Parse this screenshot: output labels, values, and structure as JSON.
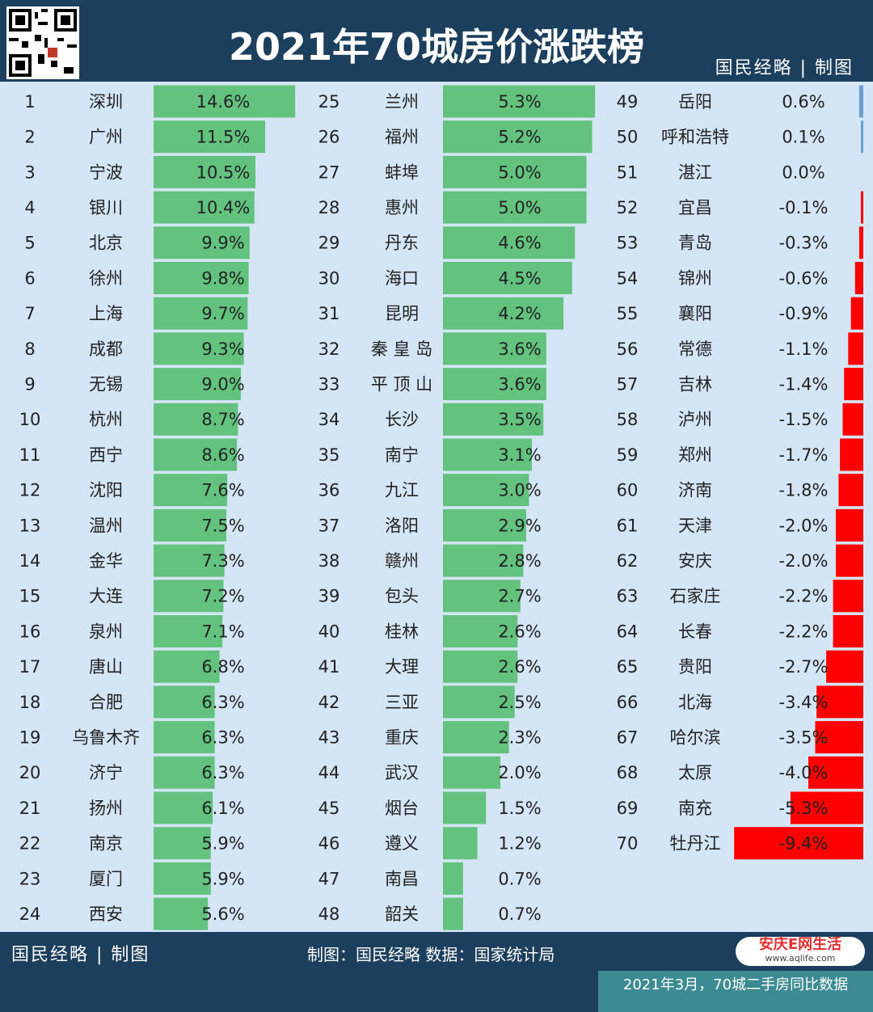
{
  "header": {
    "title": "2021年70城房价涨跌榜",
    "brand": "国民经略 | 制图"
  },
  "note": {
    "line1": "制图：国民经略  数据：国家统计局",
    "line2": "2021年3月，70城二手房同比数据"
  },
  "footer": {
    "brand": "国民经略 | 制图",
    "credit": "制图：国民经略 数据：国家统计局",
    "logo_text": "安庆E网生活",
    "logo_url": "www.aqlife.com"
  },
  "colors": {
    "positive": "#62c27e",
    "negative": "#ff0000",
    "small": "#6a9fd0",
    "panel": "#d4e6f5",
    "header": "#1c3f5d"
  },
  "chart_data": {
    "type": "bar",
    "unit": "%",
    "series": [
      {
        "values": [
          {
            "rank": "1",
            "city": "深圳",
            "value": 14.6
          },
          {
            "rank": "2",
            "city": "广州",
            "value": 11.5
          },
          {
            "rank": "3",
            "city": "宁波",
            "value": 10.5
          },
          {
            "rank": "4",
            "city": "银川",
            "value": 10.4
          },
          {
            "rank": "5",
            "city": "北京",
            "value": 9.9
          },
          {
            "rank": "6",
            "city": "徐州",
            "value": 9.8
          },
          {
            "rank": "7",
            "city": "上海",
            "value": 9.7
          },
          {
            "rank": "8",
            "city": "成都",
            "value": 9.3
          },
          {
            "rank": "9",
            "city": "无锡",
            "value": 9.0
          },
          {
            "rank": "10",
            "city": "杭州",
            "value": 8.7
          },
          {
            "rank": "11",
            "city": "西宁",
            "value": 8.6
          },
          {
            "rank": "12",
            "city": "沈阳",
            "value": 7.6
          },
          {
            "rank": "13",
            "city": "温州",
            "value": 7.5
          },
          {
            "rank": "14",
            "city": "金华",
            "value": 7.3
          },
          {
            "rank": "15",
            "city": "大连",
            "value": 7.2
          },
          {
            "rank": "16",
            "city": "泉州",
            "value": 7.1
          },
          {
            "rank": "17",
            "city": "唐山",
            "value": 6.8
          },
          {
            "rank": "18",
            "city": "合肥",
            "value": 6.3
          },
          {
            "rank": "19",
            "city": "乌鲁木齐",
            "value": 6.3
          },
          {
            "rank": "20",
            "city": "济宁",
            "value": 6.3
          },
          {
            "rank": "21",
            "city": "扬州",
            "value": 6.1
          },
          {
            "rank": "22",
            "city": "南京",
            "value": 5.9
          },
          {
            "rank": "23",
            "city": "厦门",
            "value": 5.9
          },
          {
            "rank": "24",
            "city": "西安",
            "value": 5.6
          }
        ]
      },
      {
        "values": [
          {
            "rank": "25",
            "city": "兰州",
            "value": 5.3
          },
          {
            "rank": "26",
            "city": "福州",
            "value": 5.2
          },
          {
            "rank": "27",
            "city": "蚌埠",
            "value": 5.0
          },
          {
            "rank": "28",
            "city": "惠州",
            "value": 5.0
          },
          {
            "rank": "29",
            "city": "丹东",
            "value": 4.6
          },
          {
            "rank": "30",
            "city": "海口",
            "value": 4.5
          },
          {
            "rank": "31",
            "city": "昆明",
            "value": 4.2
          },
          {
            "rank": "32",
            "city": "秦 皇 岛",
            "value": 3.6
          },
          {
            "rank": "33",
            "city": "平 顶 山",
            "value": 3.6
          },
          {
            "rank": "34",
            "city": "长沙",
            "value": 3.5
          },
          {
            "rank": "35",
            "city": "南宁",
            "value": 3.1
          },
          {
            "rank": "36",
            "city": "九江",
            "value": 3.0
          },
          {
            "rank": "37",
            "city": "洛阳",
            "value": 2.9
          },
          {
            "rank": "38",
            "city": "赣州",
            "value": 2.8
          },
          {
            "rank": "39",
            "city": "包头",
            "value": 2.7
          },
          {
            "rank": "40",
            "city": "桂林",
            "value": 2.6
          },
          {
            "rank": "41",
            "city": "大理",
            "value": 2.6
          },
          {
            "rank": "42",
            "city": "三亚",
            "value": 2.5
          },
          {
            "rank": "43",
            "city": "重庆",
            "value": 2.3
          },
          {
            "rank": "44",
            "city": "武汉",
            "value": 2.0
          },
          {
            "rank": "45",
            "city": "烟台",
            "value": 1.5
          },
          {
            "rank": "46",
            "city": "遵义",
            "value": 1.2
          },
          {
            "rank": "47",
            "city": "南昌",
            "value": 0.7
          },
          {
            "rank": "48",
            "city": "韶关",
            "value": 0.7
          }
        ]
      },
      {
        "values": [
          {
            "rank": "49",
            "city": "岳阳",
            "value": 0.6
          },
          {
            "rank": "50",
            "city": "呼和浩特",
            "value": 0.1
          },
          {
            "rank": "51",
            "city": "湛江",
            "value": 0.0
          },
          {
            "rank": "52",
            "city": "宜昌",
            "value": -0.1
          },
          {
            "rank": "53",
            "city": "青岛",
            "value": -0.3
          },
          {
            "rank": "54",
            "city": "锦州",
            "value": -0.6
          },
          {
            "rank": "55",
            "city": "襄阳",
            "value": -0.9
          },
          {
            "rank": "56",
            "city": "常德",
            "value": -1.1
          },
          {
            "rank": "57",
            "city": "吉林",
            "value": -1.4
          },
          {
            "rank": "58",
            "city": "泸州",
            "value": -1.5
          },
          {
            "rank": "59",
            "city": "郑州",
            "value": -1.7
          },
          {
            "rank": "60",
            "city": "济南",
            "value": -1.8
          },
          {
            "rank": "61",
            "city": "天津",
            "value": -2.0
          },
          {
            "rank": "62",
            "city": "安庆",
            "value": -2.0
          },
          {
            "rank": "63",
            "city": "石家庄",
            "value": -2.2
          },
          {
            "rank": "64",
            "city": "长春",
            "value": -2.2
          },
          {
            "rank": "65",
            "city": "贵阳",
            "value": -2.7
          },
          {
            "rank": "66",
            "city": "北海",
            "value": -3.4
          },
          {
            "rank": "67",
            "city": "哈尔滨",
            "value": -3.5
          },
          {
            "rank": "68",
            "city": "太原",
            "value": -4.0
          },
          {
            "rank": "69",
            "city": "南充",
            "value": -5.3
          },
          {
            "rank": "70",
            "city": "牡丹江",
            "value": -9.4
          }
        ]
      }
    ]
  }
}
